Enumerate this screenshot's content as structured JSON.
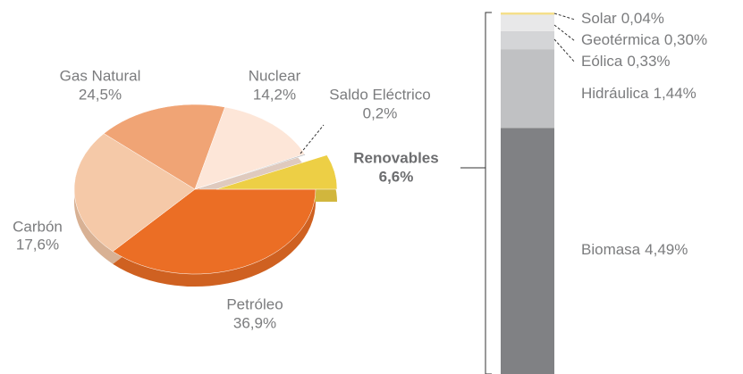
{
  "chart_data": [
    {
      "type": "pie",
      "categories": [
        "Petróleo",
        "Gas Natural",
        "Carbón",
        "Nuclear",
        "Saldo Eléctrico",
        "Renovables"
      ],
      "values": [
        36.9,
        24.5,
        17.6,
        14.2,
        0.2,
        6.6
      ],
      "value_labels": [
        "36,9%",
        "24,5%",
        "17,6%",
        "14,2%",
        "0,2%",
        "6,6%"
      ],
      "colors": [
        "#eb6e25",
        "#f5c9a8",
        "#f0a475",
        "#fde6d8",
        "#b9b9bb",
        "#edcf45"
      ]
    },
    {
      "type": "stacked-bar",
      "categories": [
        "Biomasa",
        "Hidráulica",
        "Eólica",
        "Geotérmica",
        "Solar"
      ],
      "values": [
        4.49,
        1.44,
        0.33,
        0.3,
        0.04
      ],
      "value_labels": [
        "4,49%",
        "1,44%",
        "0,33%",
        "0,30%",
        "0,04%"
      ],
      "colors": [
        "#808184",
        "#c0c1c3",
        "#d4d5d7",
        "#e8e8e9",
        "#f5df8a"
      ]
    }
  ]
}
